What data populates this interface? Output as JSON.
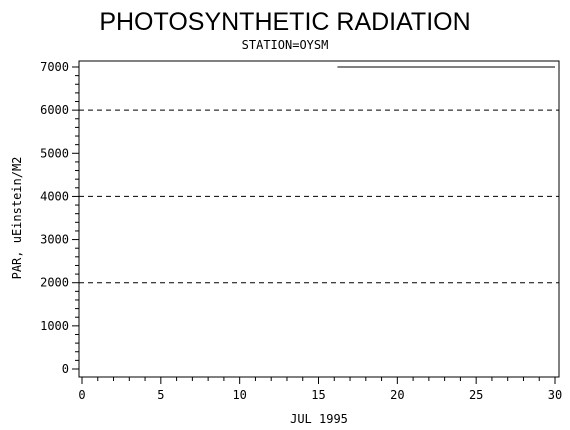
{
  "chart_data": {
    "type": "line",
    "title": "PHOTOSYNTHETIC RADIATION",
    "subtitle": "STATION=OYSM",
    "xlabel": "JUL 1995",
    "ylabel": "PAR, uEinstein/M2",
    "xlim": [
      0,
      30
    ],
    "ylim": [
      0,
      7000
    ],
    "x_ticks": [
      0,
      5,
      10,
      15,
      20,
      25,
      30
    ],
    "y_ticks": [
      0,
      1000,
      2000,
      3000,
      4000,
      5000,
      6000,
      7000
    ],
    "grid_y": [
      2000,
      4000,
      6000
    ],
    "series": [
      {
        "x": [
          16.2,
          30
        ],
        "y": [
          7000,
          7000
        ]
      }
    ]
  }
}
